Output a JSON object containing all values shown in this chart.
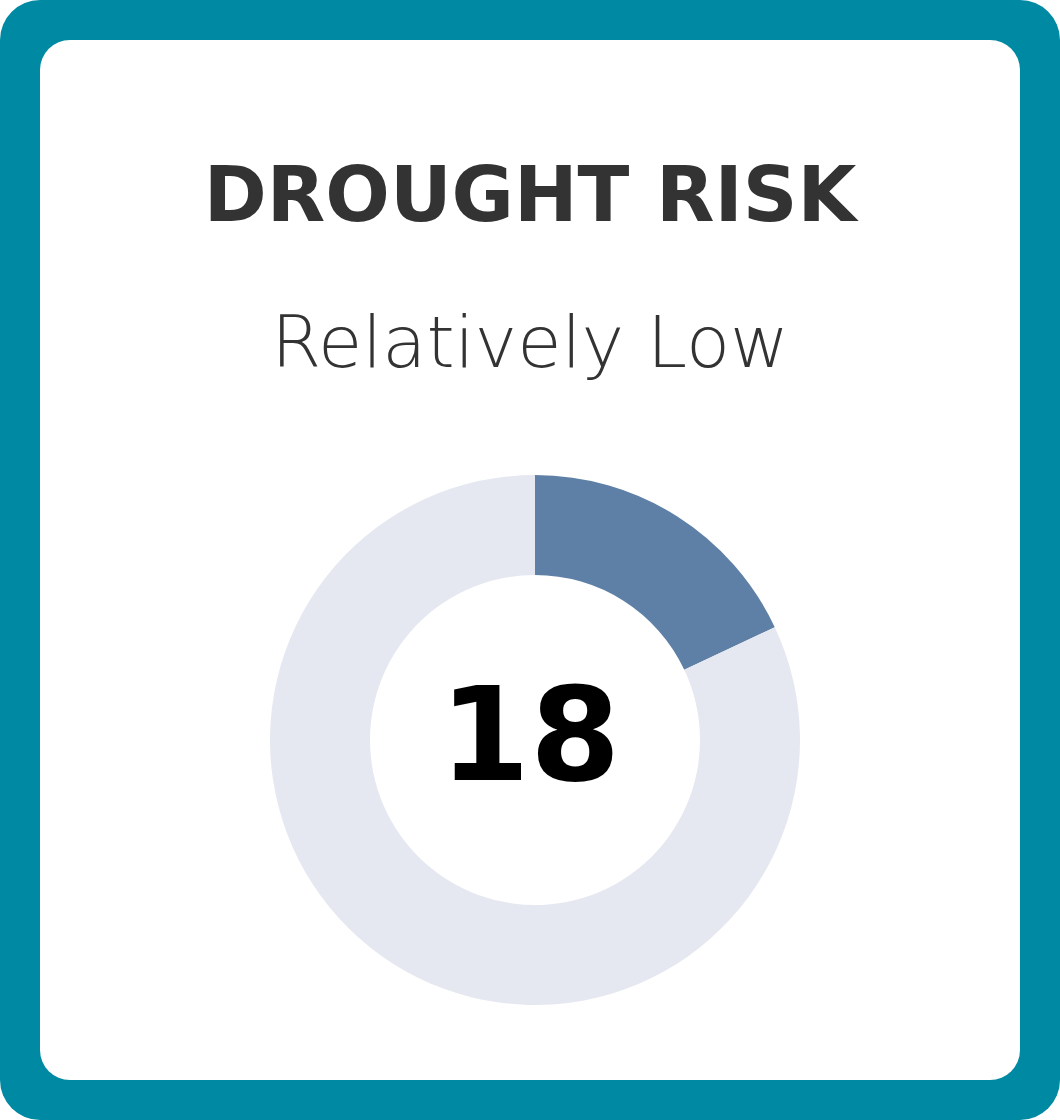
{
  "chart_data": {
    "type": "donut",
    "title": "DROUGHT RISK",
    "subtitle": "Relatively Low",
    "categories": [
      null,
      null
    ],
    "values": [
      18,
      82
    ],
    "colors": [
      "#5e80a6",
      "#e6e8f1"
    ],
    "annotations": [
      "18"
    ]
  }
}
